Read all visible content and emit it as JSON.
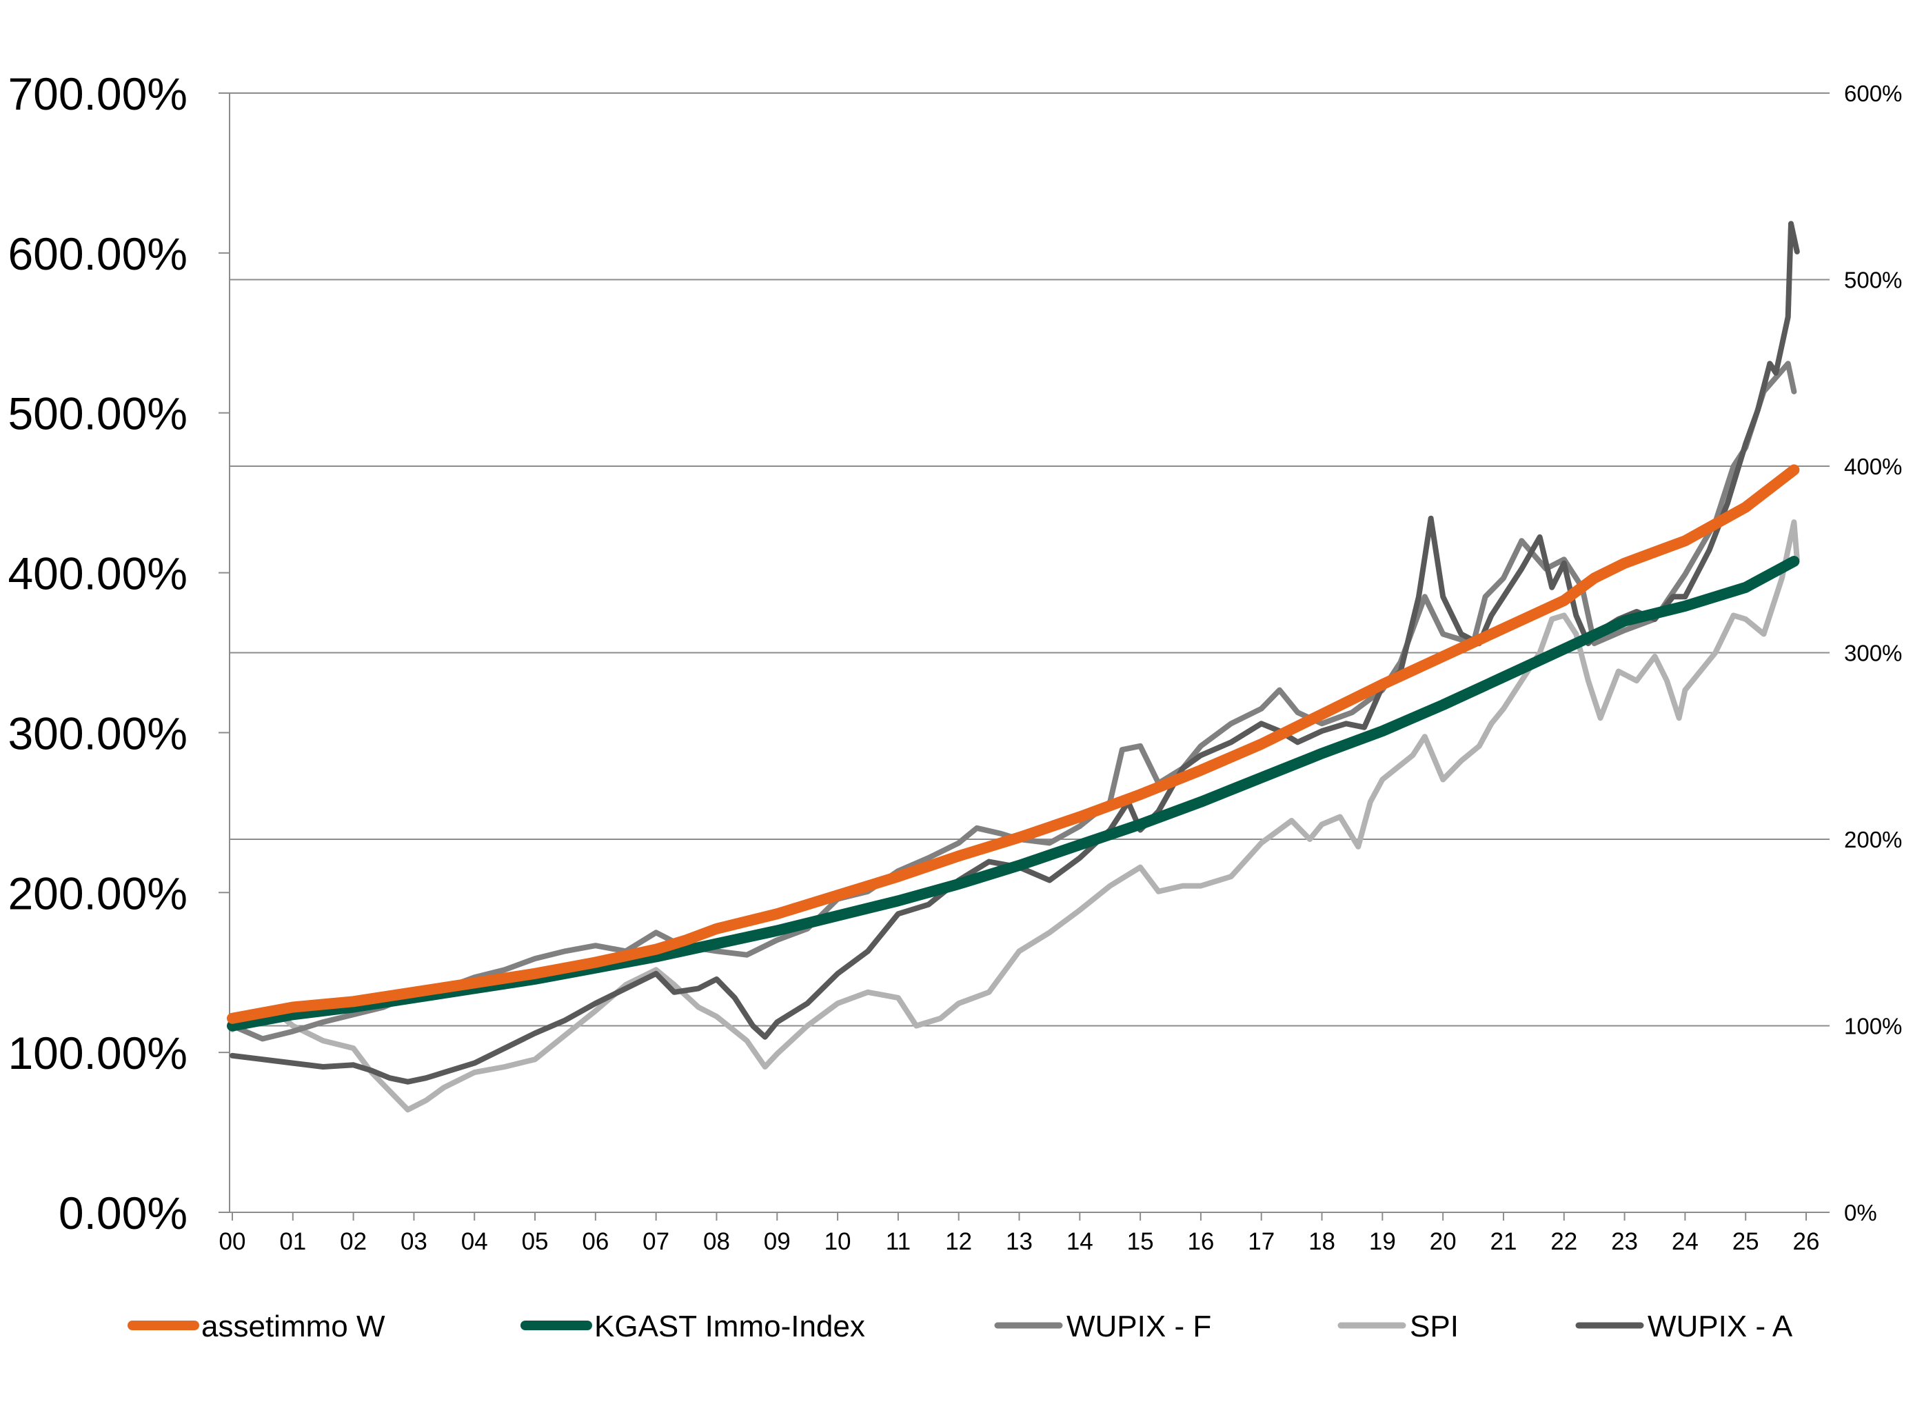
{
  "chart_data": {
    "type": "line",
    "title": "",
    "xlabel": "",
    "ylabel": "",
    "categories": [
      "00",
      "01",
      "02",
      "03",
      "04",
      "05",
      "06",
      "07",
      "08",
      "09",
      "10",
      "11",
      "12",
      "13",
      "14",
      "15",
      "16",
      "17",
      "18",
      "19",
      "20",
      "21",
      "22",
      "23",
      "24",
      "25",
      "26"
    ],
    "x_range": [
      0,
      26
    ],
    "y_left": {
      "range": [
        0,
        700
      ],
      "ticks": [
        0,
        100,
        200,
        300,
        400,
        500,
        600,
        700
      ],
      "tick_labels": [
        "0.00%",
        "100.00%",
        "200.00%",
        "300.00%",
        "400.00%",
        "500.00%",
        "600.00%",
        "700.00%"
      ]
    },
    "y_right": {
      "range": [
        0,
        600
      ],
      "ticks": [
        0,
        100,
        200,
        300,
        400,
        500,
        600
      ],
      "tick_labels": [
        "0%",
        "100%",
        "200%",
        "300%",
        "400%",
        "500%",
        "600%"
      ]
    },
    "grid": "horizontal, right axis",
    "legend_position": "bottom",
    "series": [
      {
        "name": "assetimmo W",
        "color": "#E8661C",
        "axis": "right",
        "width": 16,
        "points": [
          [
            0,
            104
          ],
          [
            1,
            110
          ],
          [
            2,
            113
          ],
          [
            3,
            118
          ],
          [
            4,
            123
          ],
          [
            5,
            128
          ],
          [
            6,
            134
          ],
          [
            7,
            141
          ],
          [
            7.5,
            146
          ],
          [
            8,
            152
          ],
          [
            9,
            160
          ],
          [
            10,
            170
          ],
          [
            11,
            180
          ],
          [
            12,
            191
          ],
          [
            13,
            201
          ],
          [
            14,
            212
          ],
          [
            15,
            224
          ],
          [
            16,
            237
          ],
          [
            17,
            251
          ],
          [
            18,
            267
          ],
          [
            19,
            283
          ],
          [
            20,
            298
          ],
          [
            21,
            313
          ],
          [
            22,
            328
          ],
          [
            22.5,
            340
          ],
          [
            23,
            348
          ],
          [
            24,
            360
          ],
          [
            25,
            378
          ],
          [
            25.8,
            398
          ]
        ]
      },
      {
        "name": "KGAST Immo-Index",
        "color": "#005A46",
        "axis": "right",
        "width": 16,
        "points": [
          [
            0,
            100
          ],
          [
            1,
            106
          ],
          [
            2,
            110
          ],
          [
            3,
            115
          ],
          [
            4,
            120
          ],
          [
            5,
            125
          ],
          [
            6,
            131
          ],
          [
            7,
            137
          ],
          [
            8,
            144
          ],
          [
            9,
            151
          ],
          [
            10,
            159
          ],
          [
            11,
            167
          ],
          [
            12,
            176
          ],
          [
            13,
            186
          ],
          [
            14,
            197
          ],
          [
            15,
            208
          ],
          [
            16,
            220
          ],
          [
            17,
            233
          ],
          [
            18,
            246
          ],
          [
            19,
            258
          ],
          [
            20,
            272
          ],
          [
            21,
            287
          ],
          [
            22,
            302
          ],
          [
            23,
            317
          ],
          [
            24,
            325
          ],
          [
            25,
            335
          ],
          [
            25.8,
            349
          ]
        ]
      },
      {
        "name": "WUPIX - F",
        "color": "#808080",
        "axis": "right",
        "width": 8,
        "points": [
          [
            0,
            100
          ],
          [
            0.5,
            93
          ],
          [
            1,
            97
          ],
          [
            1.5,
            102
          ],
          [
            2,
            106
          ],
          [
            2.5,
            110
          ],
          [
            3,
            117
          ],
          [
            3.5,
            120
          ],
          [
            4,
            126
          ],
          [
            4.5,
            130
          ],
          [
            5,
            136
          ],
          [
            5.5,
            140
          ],
          [
            6,
            143
          ],
          [
            6.5,
            140
          ],
          [
            7,
            150
          ],
          [
            7.3,
            145
          ],
          [
            7.6,
            142
          ],
          [
            8,
            140
          ],
          [
            8.5,
            138
          ],
          [
            9,
            146
          ],
          [
            9.5,
            152
          ],
          [
            10,
            168
          ],
          [
            10.5,
            172
          ],
          [
            11,
            183
          ],
          [
            11.5,
            190
          ],
          [
            12,
            198
          ],
          [
            12.3,
            206
          ],
          [
            12.7,
            203
          ],
          [
            13,
            200
          ],
          [
            13.5,
            198
          ],
          [
            14,
            207
          ],
          [
            14.5,
            220
          ],
          [
            14.7,
            248
          ],
          [
            15,
            250
          ],
          [
            15.3,
            230
          ],
          [
            15.7,
            238
          ],
          [
            16,
            250
          ],
          [
            16.5,
            262
          ],
          [
            17,
            270
          ],
          [
            17.3,
            280
          ],
          [
            17.6,
            268
          ],
          [
            18,
            262
          ],
          [
            18.5,
            268
          ],
          [
            19,
            280
          ],
          [
            19.3,
            295
          ],
          [
            19.7,
            330
          ],
          [
            20,
            310
          ],
          [
            20.5,
            305
          ],
          [
            20.7,
            330
          ],
          [
            21,
            340
          ],
          [
            21.3,
            360
          ],
          [
            21.7,
            345
          ],
          [
            22,
            350
          ],
          [
            22.3,
            335
          ],
          [
            22.5,
            305
          ],
          [
            23,
            312
          ],
          [
            23.5,
            318
          ],
          [
            24,
            342
          ],
          [
            24.5,
            370
          ],
          [
            24.8,
            400
          ],
          [
            25,
            410
          ],
          [
            25.3,
            440
          ],
          [
            25.7,
            455
          ],
          [
            25.8,
            440
          ]
        ]
      },
      {
        "name": "SPI",
        "color": "#B2B2B2",
        "axis": "right",
        "width": 8,
        "points": [
          [
            0,
            98
          ],
          [
            0.3,
            103
          ],
          [
            0.7,
            108
          ],
          [
            1,
            100
          ],
          [
            1.5,
            92
          ],
          [
            2,
            88
          ],
          [
            2.3,
            75
          ],
          [
            2.6,
            65
          ],
          [
            2.9,
            55
          ],
          [
            3.2,
            60
          ],
          [
            3.5,
            67
          ],
          [
            4,
            75
          ],
          [
            4.5,
            78
          ],
          [
            5,
            82
          ],
          [
            5.5,
            95
          ],
          [
            6,
            108
          ],
          [
            6.5,
            122
          ],
          [
            7,
            130
          ],
          [
            7.3,
            122
          ],
          [
            7.7,
            110
          ],
          [
            8,
            105
          ],
          [
            8.5,
            92
          ],
          [
            8.8,
            78
          ],
          [
            9,
            85
          ],
          [
            9.5,
            100
          ],
          [
            10,
            112
          ],
          [
            10.5,
            118
          ],
          [
            11,
            115
          ],
          [
            11.3,
            100
          ],
          [
            11.7,
            104
          ],
          [
            12,
            112
          ],
          [
            12.5,
            118
          ],
          [
            13,
            140
          ],
          [
            13.5,
            150
          ],
          [
            14,
            162
          ],
          [
            14.5,
            175
          ],
          [
            15,
            185
          ],
          [
            15.3,
            172
          ],
          [
            15.7,
            175
          ],
          [
            16,
            175
          ],
          [
            16.5,
            180
          ],
          [
            17,
            198
          ],
          [
            17.5,
            210
          ],
          [
            17.8,
            200
          ],
          [
            18,
            208
          ],
          [
            18.3,
            212
          ],
          [
            18.6,
            196
          ],
          [
            18.8,
            220
          ],
          [
            19,
            232
          ],
          [
            19.5,
            245
          ],
          [
            19.7,
            255
          ],
          [
            20,
            232
          ],
          [
            20.3,
            242
          ],
          [
            20.6,
            250
          ],
          [
            20.8,
            262
          ],
          [
            21,
            270
          ],
          [
            21.3,
            285
          ],
          [
            21.6,
            300
          ],
          [
            21.8,
            318
          ],
          [
            22,
            320
          ],
          [
            22.2,
            310
          ],
          [
            22.4,
            285
          ],
          [
            22.6,
            265
          ],
          [
            22.9,
            290
          ],
          [
            23.2,
            285
          ],
          [
            23.5,
            298
          ],
          [
            23.7,
            285
          ],
          [
            23.9,
            265
          ],
          [
            24,
            280
          ],
          [
            24.5,
            300
          ],
          [
            24.8,
            320
          ],
          [
            25,
            318
          ],
          [
            25.3,
            310
          ],
          [
            25.6,
            340
          ],
          [
            25.8,
            370
          ],
          [
            25.85,
            350
          ]
        ]
      },
      {
        "name": "WUPIX - A",
        "color": "#595959",
        "axis": "right",
        "width": 8,
        "points": [
          [
            0,
            84
          ],
          [
            0.5,
            82
          ],
          [
            1,
            80
          ],
          [
            1.5,
            78
          ],
          [
            2,
            79
          ],
          [
            2.3,
            76
          ],
          [
            2.6,
            72
          ],
          [
            2.9,
            70
          ],
          [
            3.2,
            72
          ],
          [
            3.5,
            75
          ],
          [
            4,
            80
          ],
          [
            4.5,
            88
          ],
          [
            5,
            96
          ],
          [
            5.5,
            103
          ],
          [
            6,
            112
          ],
          [
            6.5,
            120
          ],
          [
            7,
            128
          ],
          [
            7.3,
            118
          ],
          [
            7.7,
            120
          ],
          [
            8,
            125
          ],
          [
            8.3,
            115
          ],
          [
            8.6,
            100
          ],
          [
            8.8,
            94
          ],
          [
            9,
            102
          ],
          [
            9.5,
            112
          ],
          [
            10,
            128
          ],
          [
            10.5,
            140
          ],
          [
            11,
            160
          ],
          [
            11.5,
            165
          ],
          [
            12,
            178
          ],
          [
            12.5,
            188
          ],
          [
            13,
            185
          ],
          [
            13.5,
            178
          ],
          [
            14,
            190
          ],
          [
            14.5,
            205
          ],
          [
            14.8,
            220
          ],
          [
            15,
            205
          ],
          [
            15.3,
            215
          ],
          [
            15.7,
            238
          ],
          [
            16,
            245
          ],
          [
            16.5,
            252
          ],
          [
            17,
            262
          ],
          [
            17.3,
            258
          ],
          [
            17.6,
            252
          ],
          [
            18,
            258
          ],
          [
            18.4,
            262
          ],
          [
            18.7,
            260
          ],
          [
            19,
            282
          ],
          [
            19.3,
            290
          ],
          [
            19.6,
            330
          ],
          [
            19.8,
            372
          ],
          [
            20,
            330
          ],
          [
            20.3,
            310
          ],
          [
            20.6,
            305
          ],
          [
            20.8,
            320
          ],
          [
            21,
            330
          ],
          [
            21.3,
            345
          ],
          [
            21.6,
            362
          ],
          [
            21.8,
            335
          ],
          [
            22,
            348
          ],
          [
            22.2,
            320
          ],
          [
            22.4,
            305
          ],
          [
            22.6,
            312
          ],
          [
            22.9,
            318
          ],
          [
            23.2,
            322
          ],
          [
            23.5,
            318
          ],
          [
            23.8,
            330
          ],
          [
            24,
            330
          ],
          [
            24.4,
            355
          ],
          [
            24.7,
            380
          ],
          [
            25,
            412
          ],
          [
            25.2,
            430
          ],
          [
            25.4,
            455
          ],
          [
            25.5,
            450
          ],
          [
            25.7,
            480
          ],
          [
            25.75,
            530
          ],
          [
            25.85,
            515
          ]
        ]
      }
    ]
  }
}
